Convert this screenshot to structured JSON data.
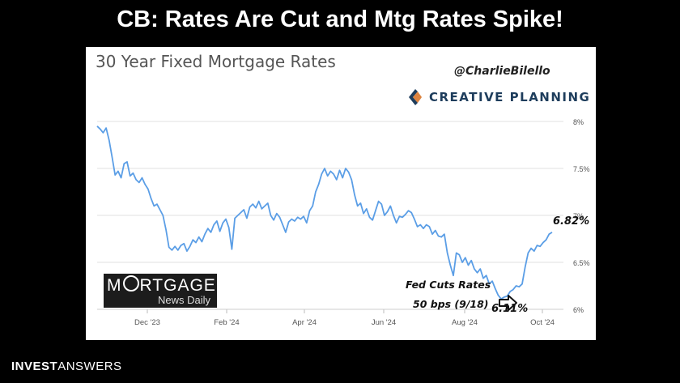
{
  "slide": {
    "title": "CB: Rates Are Cut and Mtg Rates Spike!",
    "footer_bold": "INVEST",
    "footer_light": "ANSWERS"
  },
  "brand": {
    "handle": "@CharlieBilello",
    "creative_planning": "CREATIVE PLANNING",
    "mnd_top_left": "M",
    "mnd_top_right": "RTGAGE",
    "mnd_bottom": "News Daily"
  },
  "colors": {
    "line": "#5b9ee6",
    "grid": "#e2e2e2",
    "tick_text": "#555555",
    "cp_navy": "#1e3d5c",
    "cp_orange": "#d8752a"
  },
  "annotations": {
    "fed_line1": "Fed Cuts Rates",
    "fed_line2": "50 bps (9/18)",
    "low_label": "6.11%",
    "last_label": "6.82%"
  },
  "chart_data": {
    "type": "line",
    "title": "30 Year Fixed Mortgage Rates",
    "xlabel": "",
    "ylabel": "",
    "x_ticks": [
      "Dec '23",
      "Feb '24",
      "Apr '24",
      "Jun '24",
      "Aug '24",
      "Oct '24"
    ],
    "y_ticks": [
      "6%",
      "6.5%",
      "7%",
      "7.5%",
      "8%"
    ],
    "ylim": [
      6.0,
      8.0
    ],
    "grid": true,
    "legend": "none",
    "series": [
      {
        "values": [
          7.95,
          7.92,
          7.88,
          7.93,
          7.8,
          7.62,
          7.43,
          7.47,
          7.4,
          7.55,
          7.57,
          7.42,
          7.45,
          7.38,
          7.35,
          7.4,
          7.33,
          7.28,
          7.18,
          7.1,
          7.12,
          7.06,
          7.0,
          6.85,
          6.66,
          6.63,
          6.67,
          6.63,
          6.68,
          6.7,
          6.62,
          6.67,
          6.74,
          6.71,
          6.77,
          6.72,
          6.8,
          6.86,
          6.82,
          6.9,
          6.94,
          6.83,
          6.92,
          6.96,
          6.87,
          6.64,
          6.97,
          7.0,
          7.03,
          7.06,
          6.97,
          7.09,
          7.12,
          7.08,
          7.15,
          7.07,
          7.1,
          7.13,
          7.0,
          6.95,
          7.02,
          6.98,
          6.9,
          6.82,
          6.93,
          6.96,
          6.94,
          6.98,
          6.96,
          6.99,
          6.92,
          7.05,
          7.1,
          7.25,
          7.33,
          7.44,
          7.5,
          7.42,
          7.47,
          7.44,
          7.38,
          7.48,
          7.4,
          7.5,
          7.46,
          7.38,
          7.22,
          7.1,
          7.13,
          7.02,
          7.07,
          6.98,
          6.95,
          7.05,
          7.15,
          7.12,
          7.0,
          7.04,
          7.1,
          7.0,
          6.92,
          6.99,
          6.98,
          7.01,
          7.05,
          7.03,
          6.96,
          6.88,
          6.9,
          6.86,
          6.9,
          6.88,
          6.8,
          6.84,
          6.78,
          6.77,
          6.8,
          6.6,
          6.47,
          6.36,
          6.6,
          6.58,
          6.5,
          6.55,
          6.47,
          6.52,
          6.43,
          6.39,
          6.43,
          6.33,
          6.36,
          6.27,
          6.3,
          6.22,
          6.15,
          6.11,
          6.13,
          6.14,
          6.19,
          6.21,
          6.25,
          6.24,
          6.27,
          6.45,
          6.6,
          6.65,
          6.62,
          6.68,
          6.67,
          6.71,
          6.74,
          6.8,
          6.82
        ]
      }
    ]
  }
}
